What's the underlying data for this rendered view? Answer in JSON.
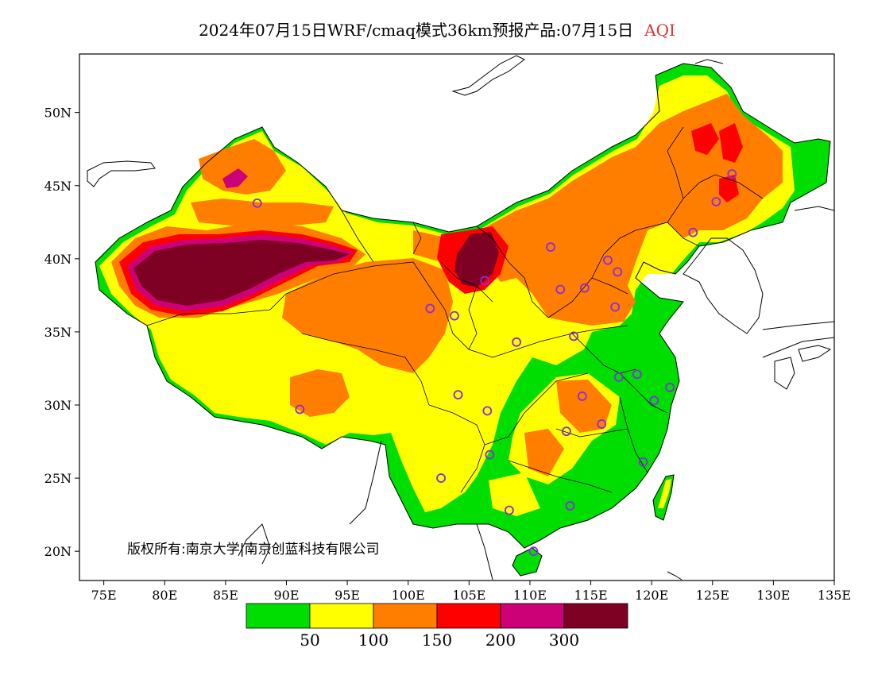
{
  "title": {
    "text": "2024年07月15日WRF/cmaq模式36km预报产品:07月15日",
    "variable": "AQI",
    "variable_color": "#e03030"
  },
  "axes": {
    "lon_range": [
      73,
      135
    ],
    "lat_range": [
      18,
      54
    ],
    "lon_ticks": [
      75,
      80,
      85,
      90,
      95,
      100,
      105,
      110,
      115,
      120,
      125,
      130,
      135
    ],
    "lon_tick_labels": [
      "75E",
      "80E",
      "85E",
      "90E",
      "95E",
      "100E",
      "105E",
      "110E",
      "115E",
      "120E",
      "125E",
      "130E",
      "135E"
    ],
    "lat_ticks": [
      20,
      25,
      30,
      35,
      40,
      45,
      50
    ],
    "lat_tick_labels": [
      "20N",
      "25N",
      "30N",
      "35N",
      "40N",
      "45N",
      "50N"
    ]
  },
  "copyright": "版权所有:南京大学|南京创蓝科技有限公司",
  "colorbar": {
    "colors": [
      "#00dd00",
      "#ffff00",
      "#ff7e00",
      "#ff0000",
      "#cc0077",
      "#7e0023"
    ],
    "labels": [
      "50",
      "100",
      "150",
      "200",
      "300"
    ]
  },
  "aqi_colors": {
    "good": "#00dd00",
    "moderate": "#ffff00",
    "usg": "#ff7e00",
    "unhealthy": "#ff0000",
    "very_unhealthy": "#cc0077",
    "hazardous": "#7e0023"
  },
  "city_marker_color": "#8a2be2",
  "cities": [
    {
      "lon": 87.6,
      "lat": 43.8
    },
    {
      "lon": 91.1,
      "lat": 29.7
    },
    {
      "lon": 101.8,
      "lat": 36.6
    },
    {
      "lon": 103.8,
      "lat": 36.1
    },
    {
      "lon": 106.3,
      "lat": 38.5
    },
    {
      "lon": 104.1,
      "lat": 30.7
    },
    {
      "lon": 106.5,
      "lat": 29.6
    },
    {
      "lon": 102.7,
      "lat": 25.0
    },
    {
      "lon": 106.7,
      "lat": 26.6
    },
    {
      "lon": 108.3,
      "lat": 22.8
    },
    {
      "lon": 110.3,
      "lat": 20.0
    },
    {
      "lon": 113.3,
      "lat": 23.1
    },
    {
      "lon": 113.0,
      "lat": 28.2
    },
    {
      "lon": 114.3,
      "lat": 30.6
    },
    {
      "lon": 115.9,
      "lat": 28.7
    },
    {
      "lon": 119.3,
      "lat": 26.1
    },
    {
      "lon": 120.2,
      "lat": 30.3
    },
    {
      "lon": 121.5,
      "lat": 31.2
    },
    {
      "lon": 118.8,
      "lat": 32.1
    },
    {
      "lon": 117.3,
      "lat": 31.9
    },
    {
      "lon": 113.6,
      "lat": 34.7
    },
    {
      "lon": 108.9,
      "lat": 34.3
    },
    {
      "lon": 112.5,
      "lat": 37.9
    },
    {
      "lon": 114.5,
      "lat": 38.0
    },
    {
      "lon": 117.0,
      "lat": 36.7
    },
    {
      "lon": 117.2,
      "lat": 39.1
    },
    {
      "lon": 116.4,
      "lat": 39.9
    },
    {
      "lon": 111.7,
      "lat": 40.8
    },
    {
      "lon": 123.4,
      "lat": 41.8
    },
    {
      "lon": 125.3,
      "lat": 43.9
    },
    {
      "lon": 126.6,
      "lat": 45.8
    }
  ]
}
